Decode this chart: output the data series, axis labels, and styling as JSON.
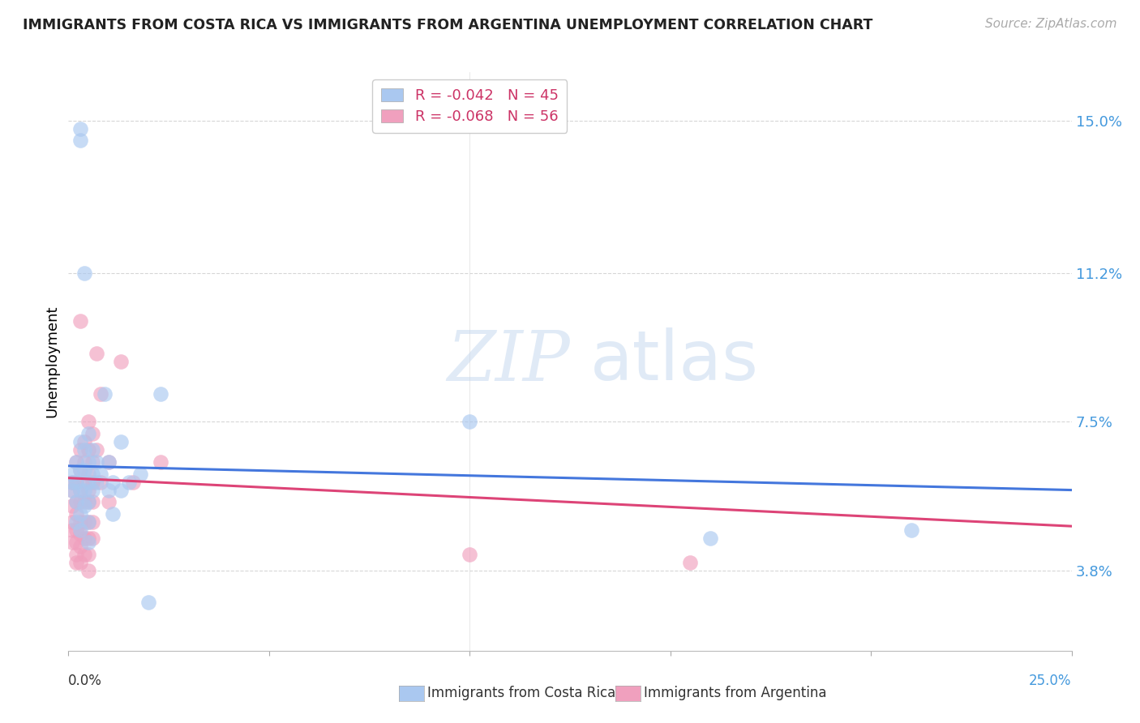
{
  "title": "IMMIGRANTS FROM COSTA RICA VS IMMIGRANTS FROM ARGENTINA UNEMPLOYMENT CORRELATION CHART",
  "source": "Source: ZipAtlas.com",
  "ylabel": "Unemployment",
  "ytick_vals": [
    0.038,
    0.075,
    0.112,
    0.15
  ],
  "ytick_labels": [
    "3.8%",
    "7.5%",
    "11.2%",
    "15.0%"
  ],
  "xlim": [
    0.0,
    0.25
  ],
  "ylim": [
    0.018,
    0.162
  ],
  "legend_line1": "R = -0.042   N = 45",
  "legend_line2": "R = -0.068   N = 56",
  "costa_rica_color": "#aac8f0",
  "argentina_color": "#f0a0be",
  "trend_costa_rica_color": "#4477dd",
  "trend_argentina_color": "#dd4477",
  "watermark_zip": "ZIP",
  "watermark_atlas": "atlas",
  "costa_rica_points": [
    [
      0.001,
      0.062
    ],
    [
      0.001,
      0.06
    ],
    [
      0.001,
      0.058
    ],
    [
      0.002,
      0.065
    ],
    [
      0.002,
      0.06
    ],
    [
      0.002,
      0.055
    ],
    [
      0.002,
      0.05
    ],
    [
      0.003,
      0.07
    ],
    [
      0.003,
      0.063
    ],
    [
      0.003,
      0.058
    ],
    [
      0.003,
      0.052
    ],
    [
      0.003,
      0.048
    ],
    [
      0.003,
      0.145
    ],
    [
      0.003,
      0.148
    ],
    [
      0.004,
      0.112
    ],
    [
      0.004,
      0.068
    ],
    [
      0.004,
      0.063
    ],
    [
      0.004,
      0.058
    ],
    [
      0.004,
      0.054
    ],
    [
      0.005,
      0.072
    ],
    [
      0.005,
      0.065
    ],
    [
      0.005,
      0.06
    ],
    [
      0.005,
      0.055
    ],
    [
      0.005,
      0.05
    ],
    [
      0.005,
      0.045
    ],
    [
      0.006,
      0.068
    ],
    [
      0.006,
      0.062
    ],
    [
      0.006,
      0.058
    ],
    [
      0.007,
      0.065
    ],
    [
      0.007,
      0.06
    ],
    [
      0.008,
      0.062
    ],
    [
      0.009,
      0.082
    ],
    [
      0.01,
      0.065
    ],
    [
      0.01,
      0.058
    ],
    [
      0.011,
      0.06
    ],
    [
      0.011,
      0.052
    ],
    [
      0.013,
      0.07
    ],
    [
      0.013,
      0.058
    ],
    [
      0.015,
      0.06
    ],
    [
      0.018,
      0.062
    ],
    [
      0.02,
      0.03
    ],
    [
      0.023,
      0.082
    ],
    [
      0.1,
      0.075
    ],
    [
      0.16,
      0.046
    ],
    [
      0.21,
      0.048
    ]
  ],
  "argentina_points": [
    [
      0.001,
      0.06
    ],
    [
      0.001,
      0.058
    ],
    [
      0.001,
      0.054
    ],
    [
      0.001,
      0.05
    ],
    [
      0.001,
      0.048
    ],
    [
      0.001,
      0.045
    ],
    [
      0.002,
      0.065
    ],
    [
      0.002,
      0.06
    ],
    [
      0.002,
      0.055
    ],
    [
      0.002,
      0.052
    ],
    [
      0.002,
      0.048
    ],
    [
      0.002,
      0.045
    ],
    [
      0.002,
      0.042
    ],
    [
      0.002,
      0.04
    ],
    [
      0.003,
      0.1
    ],
    [
      0.003,
      0.068
    ],
    [
      0.003,
      0.063
    ],
    [
      0.003,
      0.058
    ],
    [
      0.003,
      0.055
    ],
    [
      0.003,
      0.05
    ],
    [
      0.003,
      0.047
    ],
    [
      0.003,
      0.044
    ],
    [
      0.003,
      0.04
    ],
    [
      0.004,
      0.07
    ],
    [
      0.004,
      0.065
    ],
    [
      0.004,
      0.06
    ],
    [
      0.004,
      0.055
    ],
    [
      0.004,
      0.05
    ],
    [
      0.004,
      0.046
    ],
    [
      0.004,
      0.042
    ],
    [
      0.005,
      0.075
    ],
    [
      0.005,
      0.068
    ],
    [
      0.005,
      0.062
    ],
    [
      0.005,
      0.058
    ],
    [
      0.005,
      0.055
    ],
    [
      0.005,
      0.05
    ],
    [
      0.005,
      0.046
    ],
    [
      0.005,
      0.042
    ],
    [
      0.005,
      0.038
    ],
    [
      0.006,
      0.072
    ],
    [
      0.006,
      0.065
    ],
    [
      0.006,
      0.06
    ],
    [
      0.006,
      0.055
    ],
    [
      0.006,
      0.05
    ],
    [
      0.006,
      0.046
    ],
    [
      0.007,
      0.092
    ],
    [
      0.007,
      0.068
    ],
    [
      0.008,
      0.082
    ],
    [
      0.008,
      0.06
    ],
    [
      0.01,
      0.065
    ],
    [
      0.01,
      0.055
    ],
    [
      0.013,
      0.09
    ],
    [
      0.016,
      0.06
    ],
    [
      0.023,
      0.065
    ],
    [
      0.1,
      0.042
    ],
    [
      0.155,
      0.04
    ]
  ],
  "costa_rica_trend": [
    0.0,
    0.064,
    0.25,
    0.058
  ],
  "argentina_trend": [
    0.0,
    0.061,
    0.25,
    0.049
  ],
  "background_color": "#ffffff",
  "grid_color": "#cccccc"
}
